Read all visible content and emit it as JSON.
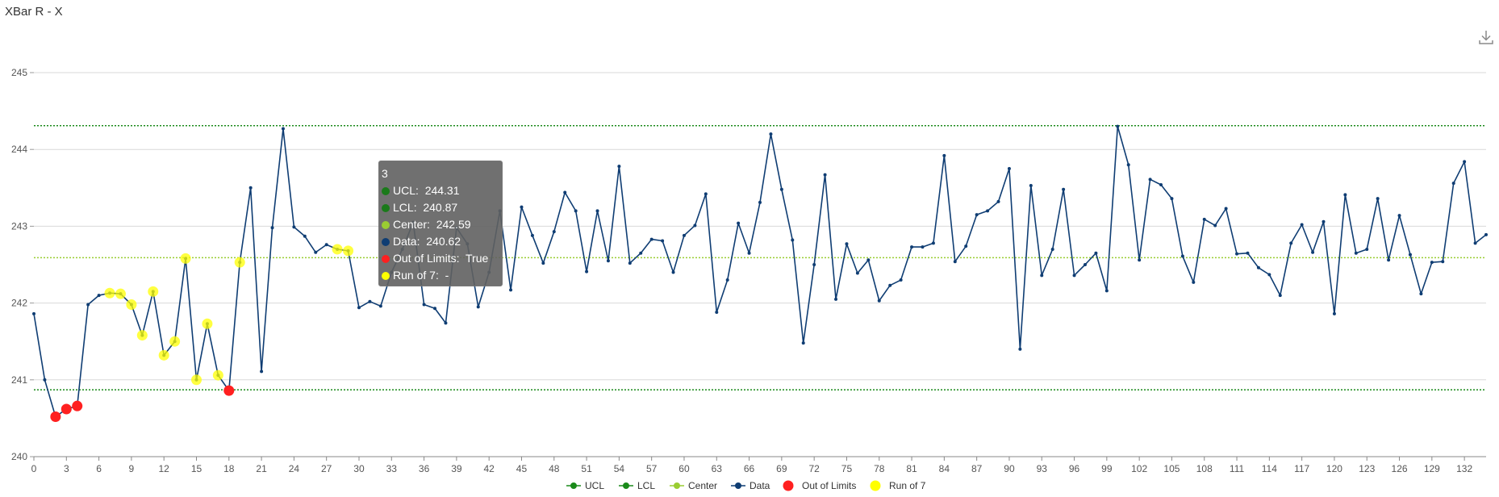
{
  "title": "XBar R - X",
  "toolbar": {
    "download_icon": "download-icon"
  },
  "colors": {
    "ucl": "#1a8a1a",
    "lcl": "#1a8a1a",
    "center": "#9acd32",
    "data": "#0f3d73",
    "out_of_limits": "#ff2020",
    "run_of_7": "#ffff00",
    "grid": "#d9d9d9"
  },
  "tooltip": {
    "title": "3",
    "rows": [
      {
        "label": "UCL",
        "value": "244.31",
        "color": "#1a7a1a"
      },
      {
        "label": "LCL",
        "value": "240.87",
        "color": "#1a7a1a"
      },
      {
        "label": "Center",
        "value": "242.59",
        "color": "#9acd32"
      },
      {
        "label": "Data",
        "value": "240.62",
        "color": "#0f3d73"
      },
      {
        "label": "Out of Limits",
        "value": "True",
        "color": "#ff2020"
      },
      {
        "label": "Run of 7",
        "value": "-",
        "color": "#ffff00"
      }
    ]
  },
  "chart_data": {
    "type": "line",
    "title": "XBar R - X",
    "xlabel": "",
    "ylabel": "",
    "xlim": [
      0,
      134
    ],
    "ylim": [
      240,
      245
    ],
    "y_ticks": [
      240,
      241,
      242,
      243,
      244,
      245
    ],
    "x_ticks": [
      0,
      3,
      6,
      9,
      12,
      15,
      18,
      21,
      24,
      27,
      30,
      33,
      36,
      39,
      42,
      45,
      48,
      51,
      54,
      57,
      60,
      63,
      66,
      69,
      72,
      75,
      78,
      81,
      84,
      87,
      90,
      93,
      96,
      99,
      102,
      105,
      108,
      111,
      114,
      117,
      120,
      123,
      126,
      129,
      132
    ],
    "grid": "horizontal",
    "legend_position": "bottom",
    "legend": [
      "UCL",
      "LCL",
      "Center",
      "Data",
      "Out of Limits",
      "Run of 7"
    ],
    "limits": {
      "ucl": 244.31,
      "lcl": 240.87,
      "center": 242.59
    },
    "series": [
      {
        "name": "Data",
        "x": [
          0,
          1,
          2,
          3,
          4,
          5,
          6,
          7,
          8,
          9,
          10,
          11,
          12,
          13,
          14,
          15,
          16,
          17,
          18,
          19,
          20,
          21,
          22,
          23,
          24,
          25,
          26,
          27,
          28,
          29,
          30,
          31,
          32,
          33,
          34,
          35,
          36,
          37,
          38,
          39,
          40,
          41,
          42,
          43,
          44,
          45,
          46,
          47,
          48,
          49,
          50,
          51,
          52,
          53,
          54,
          55,
          56,
          57,
          58,
          59,
          60,
          61,
          62,
          63,
          64,
          65,
          66,
          67,
          68,
          69,
          70,
          71,
          72,
          73,
          74,
          75,
          76,
          77,
          78,
          79,
          80,
          81,
          82,
          83,
          84,
          85,
          86,
          87,
          88,
          89,
          90,
          91,
          92,
          93,
          94,
          95,
          96,
          97,
          98,
          99,
          100,
          101,
          102,
          103,
          104,
          105,
          106,
          107,
          108,
          109,
          110,
          111,
          112,
          113,
          114,
          115,
          116,
          117,
          118,
          119,
          120,
          121,
          122,
          123,
          124,
          125,
          126,
          127,
          128,
          129,
          130,
          131,
          132,
          133,
          134
        ],
        "y": [
          241.86,
          241.0,
          240.52,
          240.62,
          240.66,
          241.98,
          242.1,
          242.13,
          242.12,
          241.98,
          241.58,
          242.15,
          241.32,
          241.5,
          242.58,
          241.0,
          241.73,
          241.06,
          240.86,
          242.53,
          243.5,
          241.11,
          242.98,
          244.27,
          242.99,
          242.87,
          242.66,
          242.76,
          242.7,
          242.68,
          241.94,
          242.02,
          241.96,
          242.4,
          242.7,
          243.05,
          241.98,
          241.93,
          241.74,
          242.98,
          242.77,
          241.95,
          242.4,
          243.2,
          242.17,
          243.25,
          242.88,
          242.52,
          242.93,
          243.44,
          243.2,
          242.41,
          243.2,
          242.55,
          243.78,
          242.52,
          242.65,
          242.83,
          242.81,
          242.4,
          242.88,
          243.01,
          243.42,
          241.88,
          242.3,
          243.04,
          242.65,
          243.31,
          244.2,
          243.48,
          242.82,
          241.48,
          242.5,
          243.67,
          242.05,
          242.77,
          242.39,
          242.56,
          242.03,
          242.23,
          242.3,
          242.73,
          242.73,
          242.78,
          243.92,
          242.54,
          242.74,
          243.15,
          243.2,
          243.32,
          243.75,
          241.4,
          243.53,
          242.36,
          242.7,
          243.48,
          242.36,
          242.5,
          242.65,
          242.16,
          244.3,
          243.8,
          242.56,
          243.61,
          243.54,
          243.36,
          242.61,
          242.27,
          243.09,
          243.01,
          243.23,
          242.64,
          242.65,
          242.46,
          242.37,
          242.1,
          242.78,
          243.02,
          242.66,
          243.06,
          241.86,
          243.41,
          242.65,
          242.7,
          243.36,
          242.56,
          243.14,
          242.63,
          242.12,
          242.53,
          242.54,
          243.56,
          243.84,
          242.78,
          242.89
        ]
      },
      {
        "name": "UCL",
        "value": 244.31
      },
      {
        "name": "LCL",
        "value": 240.87
      },
      {
        "name": "Center",
        "value": 242.59
      },
      {
        "name": "Out of Limits",
        "x": [
          2,
          3,
          4,
          18
        ]
      },
      {
        "name": "Run of 7",
        "x": [
          7,
          8,
          9,
          10,
          11,
          12,
          13,
          14,
          15,
          16,
          17,
          19,
          28,
          29
        ]
      }
    ]
  }
}
